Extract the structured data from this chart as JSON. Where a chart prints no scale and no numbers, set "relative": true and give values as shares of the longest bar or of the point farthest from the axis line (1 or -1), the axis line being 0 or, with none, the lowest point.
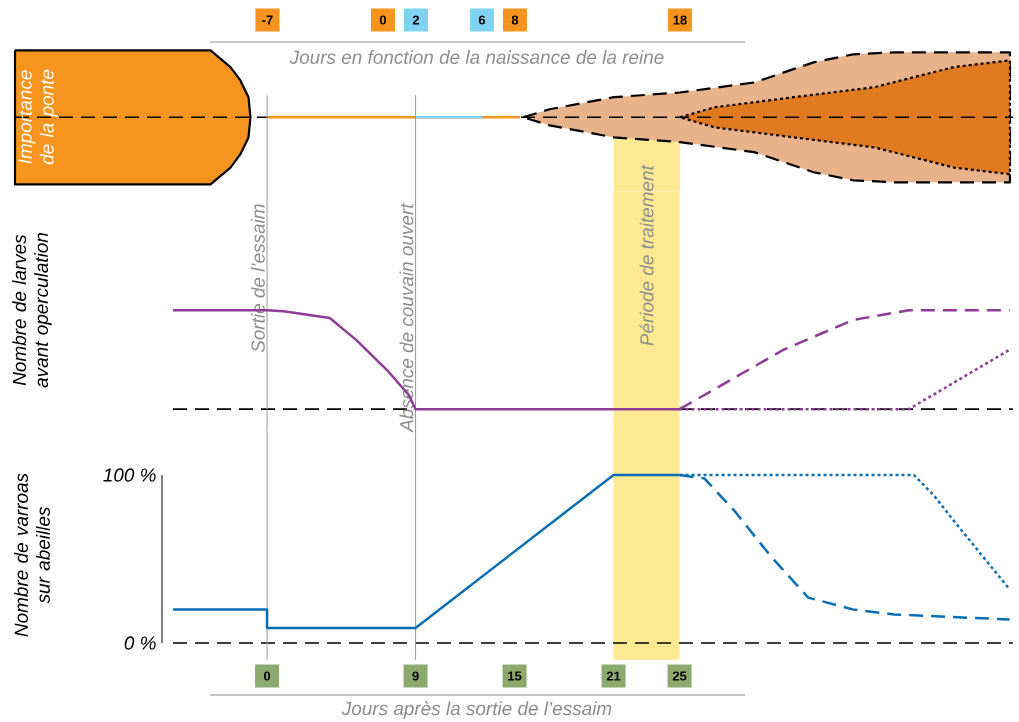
{
  "chart_data": [
    {
      "type": "area",
      "relative": true,
      "ylabel": "Importance de la ponte",
      "xlabel": "Jours en fonction de la naissance de la reine",
      "xlim": [
        -22.3,
        38.2
      ],
      "xticks": [
        -7,
        0,
        2,
        6,
        8,
        18
      ],
      "tick_labels": "x",
      "series": [
        {
          "color": "#f7941d",
          "line_style": "solid",
          "x": [
            -22.3,
            -10.45,
            -9.24,
            -8.64,
            -8.15,
            -8.03
          ],
          "values": [
            1,
            1,
            0.75,
            0.55,
            0.3,
            0
          ]
        },
        {
          "color": "#e8b38a",
          "line_style": "dashed",
          "x": [
            8.5,
            10.1,
            14,
            18,
            22.5,
            26.1,
            28.5,
            31,
            38
          ],
          "values": [
            0,
            0.12,
            0.3,
            0.37,
            0.52,
            0.82,
            0.94,
            0.97,
            0.97
          ]
        },
        {
          "color": "#e07a20",
          "line_style": "dotted",
          "x": [
            18,
            20.1,
            24.9,
            29.8,
            34.6,
            38
          ],
          "values": [
            0,
            0.15,
            0.3,
            0.45,
            0.75,
            0.85
          ]
        },
        {
          "type": "line",
          "color": "#f7941d",
          "x": [
            -7,
            8.3
          ],
          "values": [
            0,
            0
          ]
        },
        {
          "type": "line",
          "color": "#7fd3f0",
          "x": [
            2,
            6
          ],
          "values": [
            0,
            0
          ]
        }
      ],
      "ref_lines": [
        {
          "axis": "y",
          "value": 0,
          "color": "#000000",
          "line_style": "dashed"
        }
      ],
      "bands": [
        {
          "axis": "x",
          "from": 14,
          "to": 18,
          "color": "#fde992"
        }
      ]
    },
    {
      "type": "line",
      "relative": true,
      "ylabel": "Nombre de larves avant operculation",
      "xlim": [
        -5.7,
        45.2
      ],
      "tick_labels": false,
      "series": [
        {
          "color": "#8e3c97",
          "line_style": "solid",
          "x": [
            -5.7,
            0,
            1,
            3.8,
            5.4,
            7.3,
            8.6,
            9,
            25
          ],
          "values": [
            1,
            1,
            0.99,
            0.92,
            0.7,
            0.39,
            0.14,
            0,
            0
          ]
        },
        {
          "color": "#8e3c97",
          "line_style": "dashed",
          "x": [
            25,
            31.3,
            35.5,
            38.9,
            45
          ],
          "values": [
            0,
            0.6,
            0.9,
            1,
            1
          ]
        },
        {
          "color": "#8e3c97",
          "line_style": "dotted",
          "x": [
            25,
            38.9,
            45
          ],
          "values": [
            0,
            0,
            0.6
          ]
        }
      ],
      "ref_lines": [
        {
          "axis": "y",
          "value": 0,
          "color": "#000000",
          "line_style": "dashed"
        },
        {
          "axis": "x",
          "value": 0,
          "color": "#999999",
          "label": "Sortie de l’essaim"
        },
        {
          "axis": "x",
          "value": 9,
          "color": "#999999",
          "label": "Absence de couvain ouvert"
        }
      ],
      "bands": [
        {
          "axis": "x",
          "from": 21,
          "to": 25,
          "color": "#fde992",
          "label": "Période de traitement"
        }
      ]
    },
    {
      "type": "line",
      "ylabel": "Nombre de varroas sur abeilles",
      "xlabel": "Jours après la sortie de l’essaim",
      "xlim": [
        -5.7,
        45.2
      ],
      "ylim": [
        0,
        100
      ],
      "xticks": [
        0,
        9,
        15,
        21,
        25
      ],
      "yticks": [
        {
          "value": 0,
          "label": "0 %"
        },
        {
          "value": 100,
          "label": "100 %"
        }
      ],
      "series": [
        {
          "color": "#0a6eb4",
          "line_style": "solid",
          "x": [
            -5.7,
            0,
            0,
            9,
            21,
            25
          ],
          "values": [
            20,
            20,
            9,
            9,
            100,
            100
          ]
        },
        {
          "color": "#0a6eb4",
          "line_style": "dotted",
          "x": [
            25,
            39.2,
            40.4,
            41.6,
            45
          ],
          "values": [
            100,
            100,
            88,
            73,
            32
          ]
        },
        {
          "color": "#0a6eb4",
          "line_style": "dashed",
          "x": [
            25,
            26.5,
            28.3,
            30.5,
            32.8,
            35.5,
            38,
            45
          ],
          "values": [
            100,
            98,
            79,
            52,
            27,
            20,
            17,
            14
          ]
        }
      ],
      "ref_lines": [
        {
          "axis": "y",
          "value": 0,
          "color": "#000000",
          "line_style": "dashed"
        },
        {
          "axis": "x",
          "value": 0,
          "color": "#999999"
        },
        {
          "axis": "x",
          "value": 9,
          "color": "#999999"
        }
      ],
      "bands": [
        {
          "axis": "x",
          "from": 21,
          "to": 25,
          "color": "#fde992"
        }
      ]
    }
  ]
}
